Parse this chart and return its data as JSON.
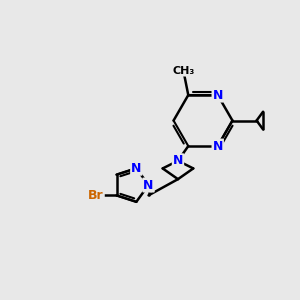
{
  "bg_color": "#e8e8e8",
  "bond_color": "#000000",
  "bond_width": 1.8,
  "atom_colors": {
    "N": "#0000ff",
    "Br": "#cc6600",
    "C": "#000000"
  }
}
